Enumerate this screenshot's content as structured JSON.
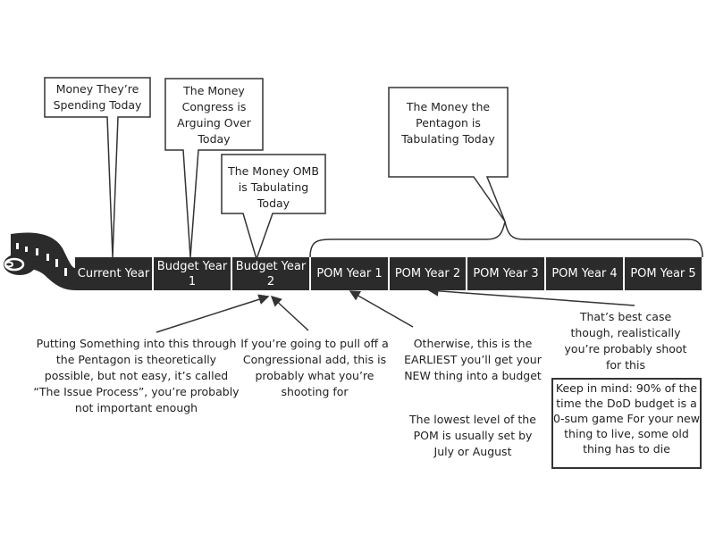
{
  "timeline": [
    {
      "label": "Current Year"
    },
    {
      "label": "Budget Year 1"
    },
    {
      "label": "Budget Year 2"
    },
    {
      "label": "POM Year 1"
    },
    {
      "label": "POM Year 2"
    },
    {
      "label": "POM Year 3"
    },
    {
      "label": "POM Year 4"
    },
    {
      "label": "POM Year 5"
    }
  ],
  "callouts": {
    "current": "Money They’re Spending Today",
    "by1": "The Money Congress is Arguing Over Today",
    "by2": "The Money OMB is Tabulating Today",
    "pom": "The Money the Pentagon is Tabulating Today"
  },
  "notes": {
    "issue": "Putting Something into this through the Pentagon is theoretically possible, but not easy, it’s called “The Issue Process”, you’re probably not important enough",
    "congress": "If you’re going to pull off a Congressional add, this is probably what you’re shooting for",
    "earliest": "Otherwise, this is the EARLIEST you’ll get your NEW thing into a budget",
    "lowest": "The lowest level of the POM is usually set by July or August",
    "bestcase": "That’s best case though, realistically you’re probably shoot for this",
    "keep_in_mind": "Keep in mind: 90% of the time the DoD budget is a 0-sum game For your new thing to live, some old thing has to die"
  },
  "colors": {
    "bar": "#2b2b2b",
    "line": "#333333"
  }
}
